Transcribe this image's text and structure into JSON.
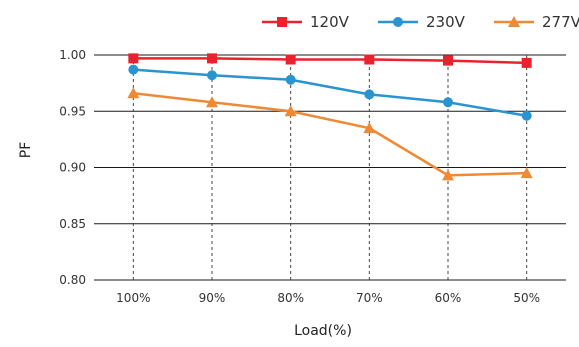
{
  "chart_data": {
    "type": "line",
    "categories": [
      "100%",
      "90%",
      "80%",
      "70%",
      "60%",
      "50%"
    ],
    "xlabel": "Load(%)",
    "ylabel": "PF",
    "ylim": [
      0.8,
      1.0
    ],
    "yticks": [
      "1.00",
      "0.95",
      "0.90",
      "0.85",
      "0.80"
    ],
    "grid": "horizontal solid, vertical dashed",
    "legend": "top-right",
    "series": [
      {
        "name": "120V",
        "color": "#e8232d",
        "marker": "square",
        "values": [
          0.997,
          0.997,
          0.996,
          0.996,
          0.995,
          0.993
        ]
      },
      {
        "name": "230V",
        "color": "#2a94d1",
        "marker": "circle",
        "values": [
          0.987,
          0.982,
          0.978,
          0.965,
          0.958,
          0.946
        ]
      },
      {
        "name": "277V",
        "color": "#ee8a35",
        "marker": "triangle",
        "values": [
          0.966,
          0.958,
          0.95,
          0.935,
          0.893,
          0.895
        ]
      }
    ]
  }
}
